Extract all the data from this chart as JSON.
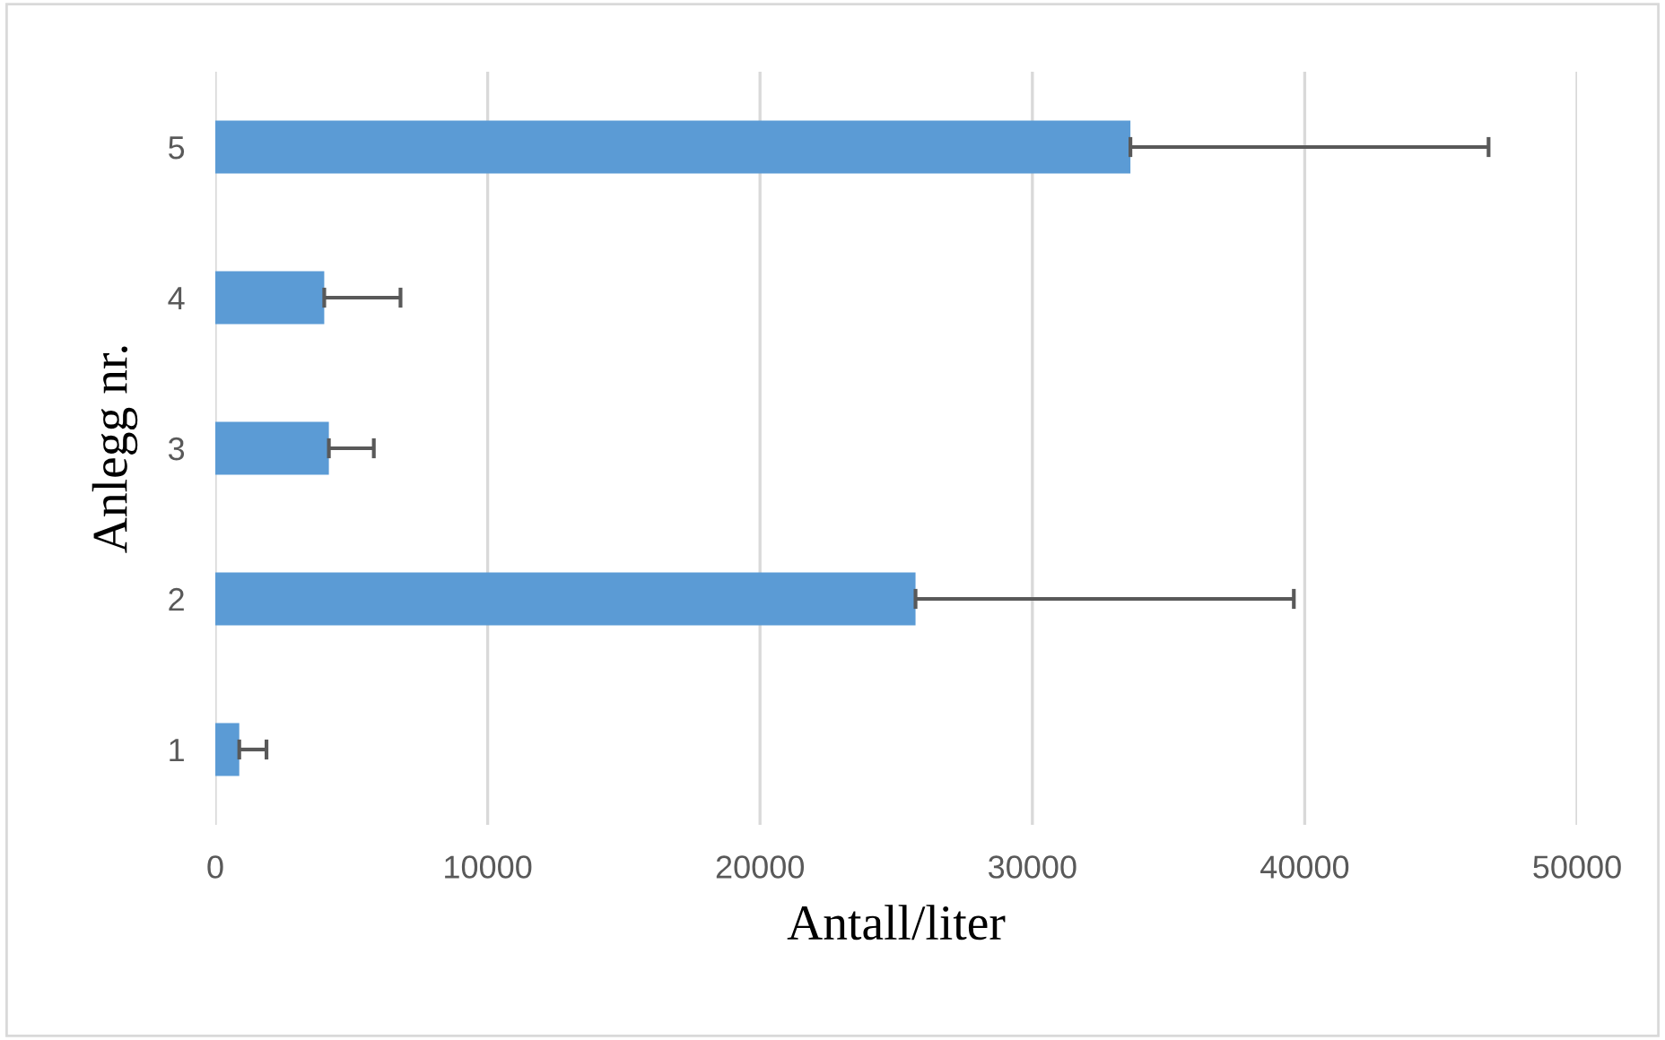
{
  "chart_data": {
    "type": "bar",
    "orientation": "horizontal",
    "xlabel": "Antall/liter",
    "ylabel": "Anlegg nr.",
    "categories": [
      "5",
      "4",
      "3",
      "2",
      "1"
    ],
    "values": [
      33600,
      4000,
      4170,
      25710,
      880
    ],
    "errors": [
      [
        33600,
        46750
      ],
      [
        4000,
        6800
      ],
      [
        4170,
        5820
      ],
      [
        25710,
        39600
      ],
      [
        880,
        1880
      ]
    ],
    "color": "#5b9bd5",
    "xlim": [
      0,
      50000
    ],
    "xticks": [
      0,
      10000,
      20000,
      30000,
      40000,
      50000
    ],
    "grid": "x"
  }
}
